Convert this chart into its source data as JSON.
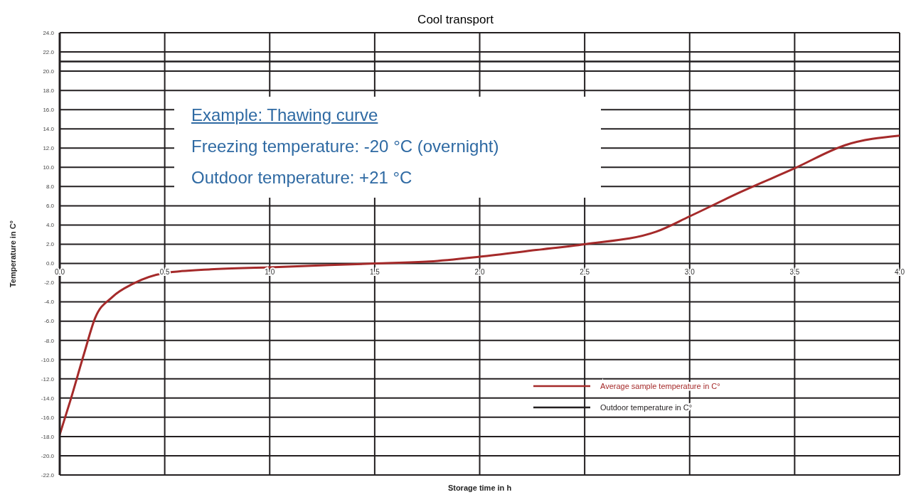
{
  "chart_data": {
    "type": "line",
    "title": "Cool transport",
    "xlabel": "Storage time in h",
    "ylabel": "Temperature in C°",
    "annotations": [
      "Example: Thawing curve",
      "Freezing temperature: -20 °C (overnight)",
      "Outdoor temperature: +21 °C"
    ],
    "series": [
      {
        "name": "Average sample temperature in C°",
        "color": "#a52a2a",
        "x": [
          0,
          0.05,
          0.117,
          0.168,
          0.25,
          0.35,
          0.5,
          0.72,
          1.0,
          1.5,
          1.76,
          2.0,
          2.27,
          2.5,
          2.84,
          3.0,
          3.24,
          3.5,
          3.74,
          4.0
        ],
        "values": [
          -17.8,
          -14.3,
          -9.3,
          -5.7,
          -3.5,
          -2.1,
          -1.0,
          -0.6,
          -0.4,
          0,
          0.2,
          0.7,
          1.4,
          2.0,
          3.3,
          4.9,
          7.4,
          9.9,
          12.3,
          13.3
        ]
      },
      {
        "name": "Outdoor temperature  in C°",
        "color": "#231f20",
        "x": [
          0,
          4
        ],
        "values": [
          21,
          21
        ]
      }
    ],
    "xlim": [
      0,
      4
    ],
    "xticks": [
      {
        "value": 0,
        "label": "0.0"
      },
      {
        "value": 0.5,
        "label": "0.5"
      },
      {
        "value": 1,
        "label": "1.0"
      },
      {
        "value": 1.5,
        "label": "1.5"
      },
      {
        "value": 2,
        "label": "2.0"
      },
      {
        "value": 2.5,
        "label": "2.5"
      },
      {
        "value": 3,
        "label": "3.0"
      },
      {
        "value": 3.5,
        "label": "3.5"
      },
      {
        "value": 4,
        "label": "4.0"
      }
    ],
    "ylim": [
      -22,
      24
    ],
    "yticks": [
      {
        "value": -22,
        "label": "-22.0"
      },
      {
        "value": -20,
        "label": "-20.0"
      },
      {
        "value": -18,
        "label": "-18.0"
      },
      {
        "value": -16,
        "label": "-16.0"
      },
      {
        "value": -14,
        "label": "-14.0"
      },
      {
        "value": -12,
        "label": "-12.0"
      },
      {
        "value": -10,
        "label": "-10.0"
      },
      {
        "value": -8,
        "label": "-8.0"
      },
      {
        "value": -6,
        "label": "-6.0"
      },
      {
        "value": -4,
        "label": "-4.0"
      },
      {
        "value": -2,
        "label": "-2.0"
      },
      {
        "value": 0,
        "label": "0.0"
      },
      {
        "value": 2,
        "label": "2.0"
      },
      {
        "value": 4,
        "label": "4.0"
      },
      {
        "value": 6,
        "label": "6.0"
      },
      {
        "value": 8,
        "label": "8.0"
      },
      {
        "value": 10,
        "label": "10.0"
      },
      {
        "value": 12,
        "label": "12.0"
      },
      {
        "value": 14,
        "label": "14.0"
      },
      {
        "value": 16,
        "label": "16.0"
      },
      {
        "value": 18,
        "label": "18.0"
      },
      {
        "value": 20,
        "label": "20.0"
      },
      {
        "value": 22,
        "label": "22.0"
      },
      {
        "value": 24,
        "label": "24.0"
      }
    ],
    "grid": true,
    "legend": "bottom right",
    "marker": "none",
    "line_style": "solid"
  }
}
